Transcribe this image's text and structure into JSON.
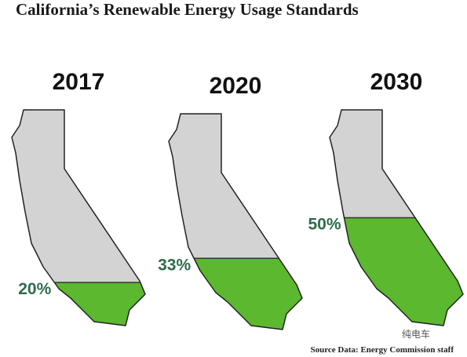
{
  "chart_data": {
    "type": "state-fill",
    "title": "California’s Renewable Energy Usage Standards",
    "categories": [
      "2017",
      "2020",
      "2030"
    ],
    "values": [
      20,
      33,
      50
    ],
    "value_labels": [
      "20%",
      "33%",
      "50%"
    ],
    "color": "#5cb82e",
    "source": "Source Data: Energy Commission staff",
    "watermark": "纯电车"
  }
}
